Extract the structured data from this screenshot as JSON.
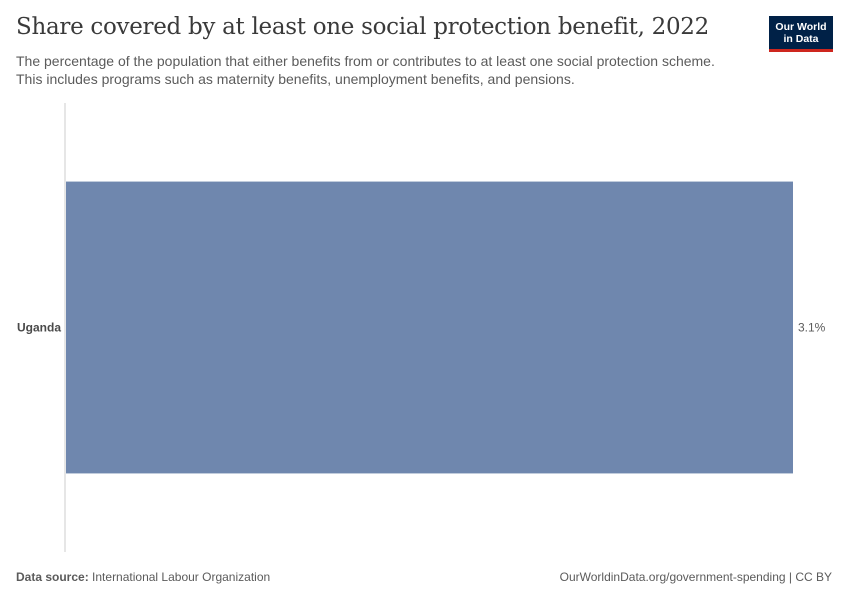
{
  "header": {
    "title": "Share covered by at least one social protection benefit, 2022",
    "subtitle": "The percentage of the population that either benefits from or contributes to at least one social protection scheme. This includes programs such as maternity benefits, unemployment benefits, and pensions."
  },
  "logo": {
    "line1": "Our World",
    "line2": "in Data"
  },
  "chart_data": {
    "type": "bar",
    "orientation": "horizontal",
    "categories": [
      "Uganda"
    ],
    "values": [
      3.1
    ],
    "value_labels": [
      "3.1%"
    ],
    "unit": "%",
    "xlim": [
      0,
      3.1
    ],
    "bar_color": "#6f87ae",
    "grid": false
  },
  "footer": {
    "source_label": "Data source:",
    "source_value": "International Labour Organization",
    "url_license": "OurWorldinData.org/government-spending | CC BY"
  },
  "colors": {
    "brand_navy": "#002147",
    "brand_red": "#ce261e",
    "bar": "#6f87ae"
  }
}
